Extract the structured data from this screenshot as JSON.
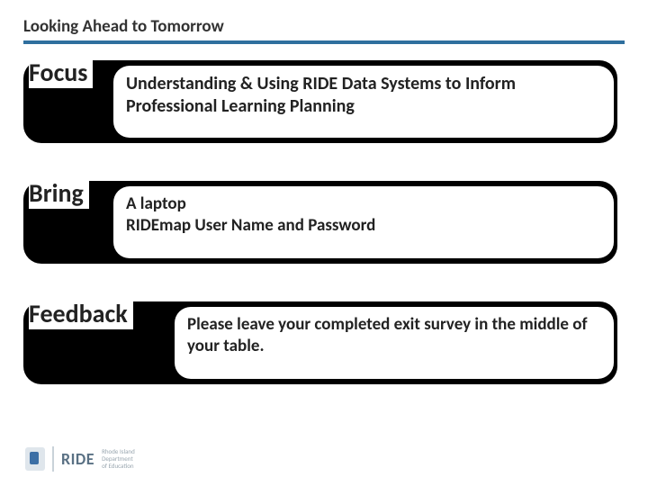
{
  "colors": {
    "hr_border": "#2f6f9e",
    "pill_bg": "#000000",
    "inner_bg": "#ffffff",
    "title_color": "#333333",
    "body_color": "#222222",
    "logo_text": "#5a7184"
  },
  "title": "Looking Ahead to Tomorrow",
  "rows": {
    "focus": {
      "label": "Focus",
      "text": "Understanding & Using RIDE Data Systems to Inform Professional Learning Planning"
    },
    "bring": {
      "label": "Bring",
      "line1": "A laptop",
      "line2": "RIDEmap User Name and Password"
    },
    "feedback": {
      "label": "Feedback",
      "text": "Please leave your completed exit survey in the middle of your table."
    }
  },
  "logo": {
    "word": "RIDE",
    "sub1": "Rhode Island",
    "sub2": "Department",
    "sub3": "of Education"
  }
}
